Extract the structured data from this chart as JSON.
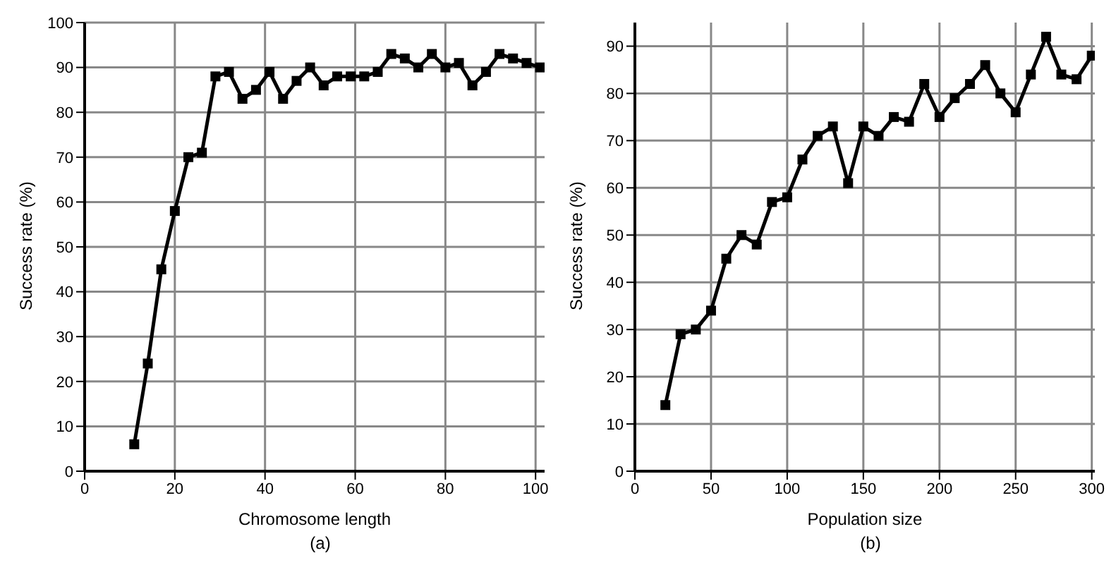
{
  "chart_data": [
    {
      "type": "line",
      "xlabel": "Chromosome length",
      "ylabel": "Success rate (%)",
      "annotations": [
        "(a)"
      ],
      "xlim": [
        0,
        102
      ],
      "xticks": [
        0,
        20,
        40,
        60,
        80,
        100
      ],
      "ylim": [
        0,
        100
      ],
      "yticks": [
        0,
        10,
        20,
        30,
        40,
        50,
        60,
        70,
        80,
        90,
        100
      ],
      "grid": true,
      "marker": "square",
      "legend": false,
      "x": [
        11,
        14,
        17,
        20,
        23,
        26,
        29,
        32,
        35,
        38,
        41,
        44,
        47,
        50,
        53,
        56,
        59,
        62,
        65,
        68,
        71,
        74,
        77,
        80,
        83,
        86,
        89,
        92,
        95,
        98,
        101
      ],
      "series": [
        {
          "color": "#000000",
          "values": [
            6,
            24,
            45,
            58,
            70,
            71,
            88,
            89,
            83,
            85,
            89,
            83,
            87,
            90,
            86,
            88,
            88,
            88,
            89,
            93,
            92,
            90,
            93,
            90,
            91,
            86,
            89,
            93,
            92,
            91,
            90
          ]
        }
      ]
    },
    {
      "type": "line",
      "xlabel": "Population size",
      "ylabel": "Success rate (%)",
      "annotations": [
        "(b)"
      ],
      "xlim": [
        0,
        302
      ],
      "xticks": [
        0,
        50,
        100,
        150,
        200,
        250,
        300
      ],
      "ylim": [
        0,
        95
      ],
      "yticks": [
        0,
        10,
        20,
        30,
        40,
        50,
        60,
        70,
        80,
        90
      ],
      "grid": true,
      "marker": "square",
      "legend": false,
      "x": [
        20,
        30,
        40,
        50,
        60,
        70,
        80,
        90,
        100,
        110,
        120,
        130,
        140,
        150,
        160,
        170,
        180,
        190,
        200,
        210,
        220,
        230,
        240,
        250,
        260,
        270,
        280,
        290,
        300
      ],
      "series": [
        {
          "color": "#000000",
          "values": [
            14,
            29,
            30,
            34,
            45,
            50,
            48,
            57,
            58,
            66,
            71,
            73,
            61,
            73,
            71,
            75,
            74,
            82,
            75,
            79,
            82,
            86,
            80,
            76,
            84,
            92,
            84,
            83,
            88
          ]
        }
      ]
    }
  ]
}
